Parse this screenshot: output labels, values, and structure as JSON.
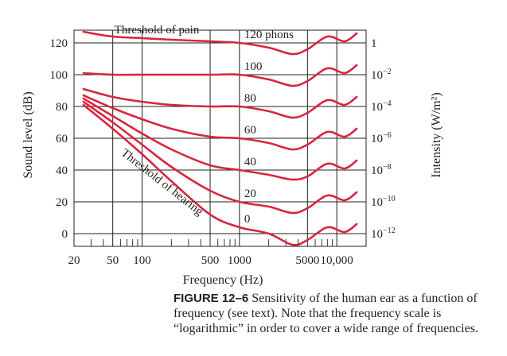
{
  "chart_data": {
    "type": "line",
    "title": "",
    "xlabel": "Frequency (Hz)",
    "ylabel_left": "Sound level (dB)",
    "ylabel_right": "Intensity (W/m²)",
    "x_scale": "log",
    "xlim": [
      20,
      20000
    ],
    "ylim": [
      -8,
      128
    ],
    "grid": true,
    "x_ticks": [
      {
        "value": 20,
        "label": "20"
      },
      {
        "value": 50,
        "label": "50"
      },
      {
        "value": 100,
        "label": "100"
      },
      {
        "value": 500,
        "label": "500"
      },
      {
        "value": 1000,
        "label": "1000"
      },
      {
        "value": 5000,
        "label": "5000"
      },
      {
        "value": 10000,
        "label": "10,000"
      }
    ],
    "y_ticks": [
      {
        "value": 0,
        "label": "0"
      },
      {
        "value": 20,
        "label": "20"
      },
      {
        "value": 40,
        "label": "40"
      },
      {
        "value": 60,
        "label": "60"
      },
      {
        "value": 80,
        "label": "80"
      },
      {
        "value": 100,
        "label": "100"
      },
      {
        "value": 120,
        "label": "120"
      }
    ],
    "right_ticks": [
      {
        "value": 120,
        "base": "1",
        "exp": ""
      },
      {
        "value": 100,
        "base": "10",
        "exp": "−2"
      },
      {
        "value": 80,
        "base": "10",
        "exp": "−4"
      },
      {
        "value": 60,
        "base": "10",
        "exp": "−6"
      },
      {
        "value": 40,
        "base": "10",
        "exp": "−8"
      },
      {
        "value": 20,
        "base": "10",
        "exp": "−10"
      },
      {
        "value": 0,
        "base": "10",
        "exp": "−12"
      }
    ],
    "series": [
      {
        "name": "120 phons",
        "label": "120 phons",
        "x": [
          25,
          50,
          100,
          200,
          500,
          1000,
          2000,
          3500,
          5000,
          8000,
          12000,
          16000
        ],
        "y": [
          127,
          124,
          123,
          122,
          121,
          120,
          117,
          113,
          116,
          124,
          121,
          126
        ]
      },
      {
        "name": "100 phons",
        "label": "100",
        "x": [
          25,
          50,
          100,
          200,
          500,
          1000,
          2000,
          3500,
          5000,
          8000,
          12000,
          16000
        ],
        "y": [
          101,
          100,
          100,
          100,
          100,
          100,
          97,
          93,
          96,
          104,
          101,
          106
        ]
      },
      {
        "name": "80 phons",
        "label": "80",
        "x": [
          25,
          50,
          100,
          200,
          500,
          1000,
          2000,
          3500,
          5000,
          8000,
          12000,
          16000
        ],
        "y": [
          91,
          86,
          83,
          81,
          80,
          80,
          77,
          73,
          76,
          84,
          81,
          86
        ]
      },
      {
        "name": "60 phons",
        "label": "60",
        "x": [
          25,
          50,
          100,
          200,
          500,
          1000,
          2000,
          3500,
          5000,
          8000,
          12000,
          16000
        ],
        "y": [
          87,
          79,
          72,
          66,
          61,
          60,
          57,
          53,
          56,
          64,
          61,
          66
        ]
      },
      {
        "name": "40 phons",
        "label": "40",
        "x": [
          25,
          50,
          100,
          200,
          500,
          1000,
          2000,
          3500,
          5000,
          8000,
          12000,
          16000
        ],
        "y": [
          85,
          74,
          63,
          53,
          43,
          40,
          37,
          34,
          36,
          44,
          41,
          46
        ]
      },
      {
        "name": "20 phons",
        "label": "20",
        "x": [
          25,
          50,
          100,
          200,
          500,
          1000,
          2000,
          3500,
          5000,
          8000,
          12000,
          16000
        ],
        "y": [
          83,
          70,
          56,
          42,
          27,
          20,
          17,
          13,
          16,
          24,
          21,
          26
        ]
      },
      {
        "name": "0 phons",
        "label": "0",
        "x": [
          25,
          50,
          100,
          200,
          500,
          1000,
          2000,
          3500,
          5000,
          8000,
          12000,
          16000
        ],
        "y": [
          81,
          66,
          50,
          33,
          12,
          4,
          0,
          -7,
          -4,
          4,
          1,
          6
        ]
      }
    ],
    "annotations": [
      {
        "text": "Threshold of pain"
      },
      {
        "text": "Threshold of hearing"
      }
    ]
  },
  "caption": {
    "figure_label": "FIGURE 12–6",
    "text": "Sensitivity of the human ear as a function of frequency (see text). Note that the frequency scale is “logarithmic” in order to cover a wide range of frequencies."
  }
}
